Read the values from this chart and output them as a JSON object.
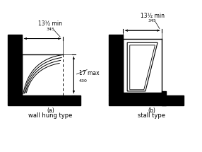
{
  "fig_width": 2.86,
  "fig_height": 2.15,
  "dpi": 100,
  "bg_color": "#ffffff",
  "line_color": "#000000",
  "fill_color": "#000000",
  "label_a": "(a)",
  "label_b": "(b)",
  "caption_a": "wall hung type",
  "caption_b": "stall type",
  "dim_top": "13½ min",
  "dim_top_sub": "345",
  "dim_side": "17 max",
  "dim_side_sub": "430"
}
